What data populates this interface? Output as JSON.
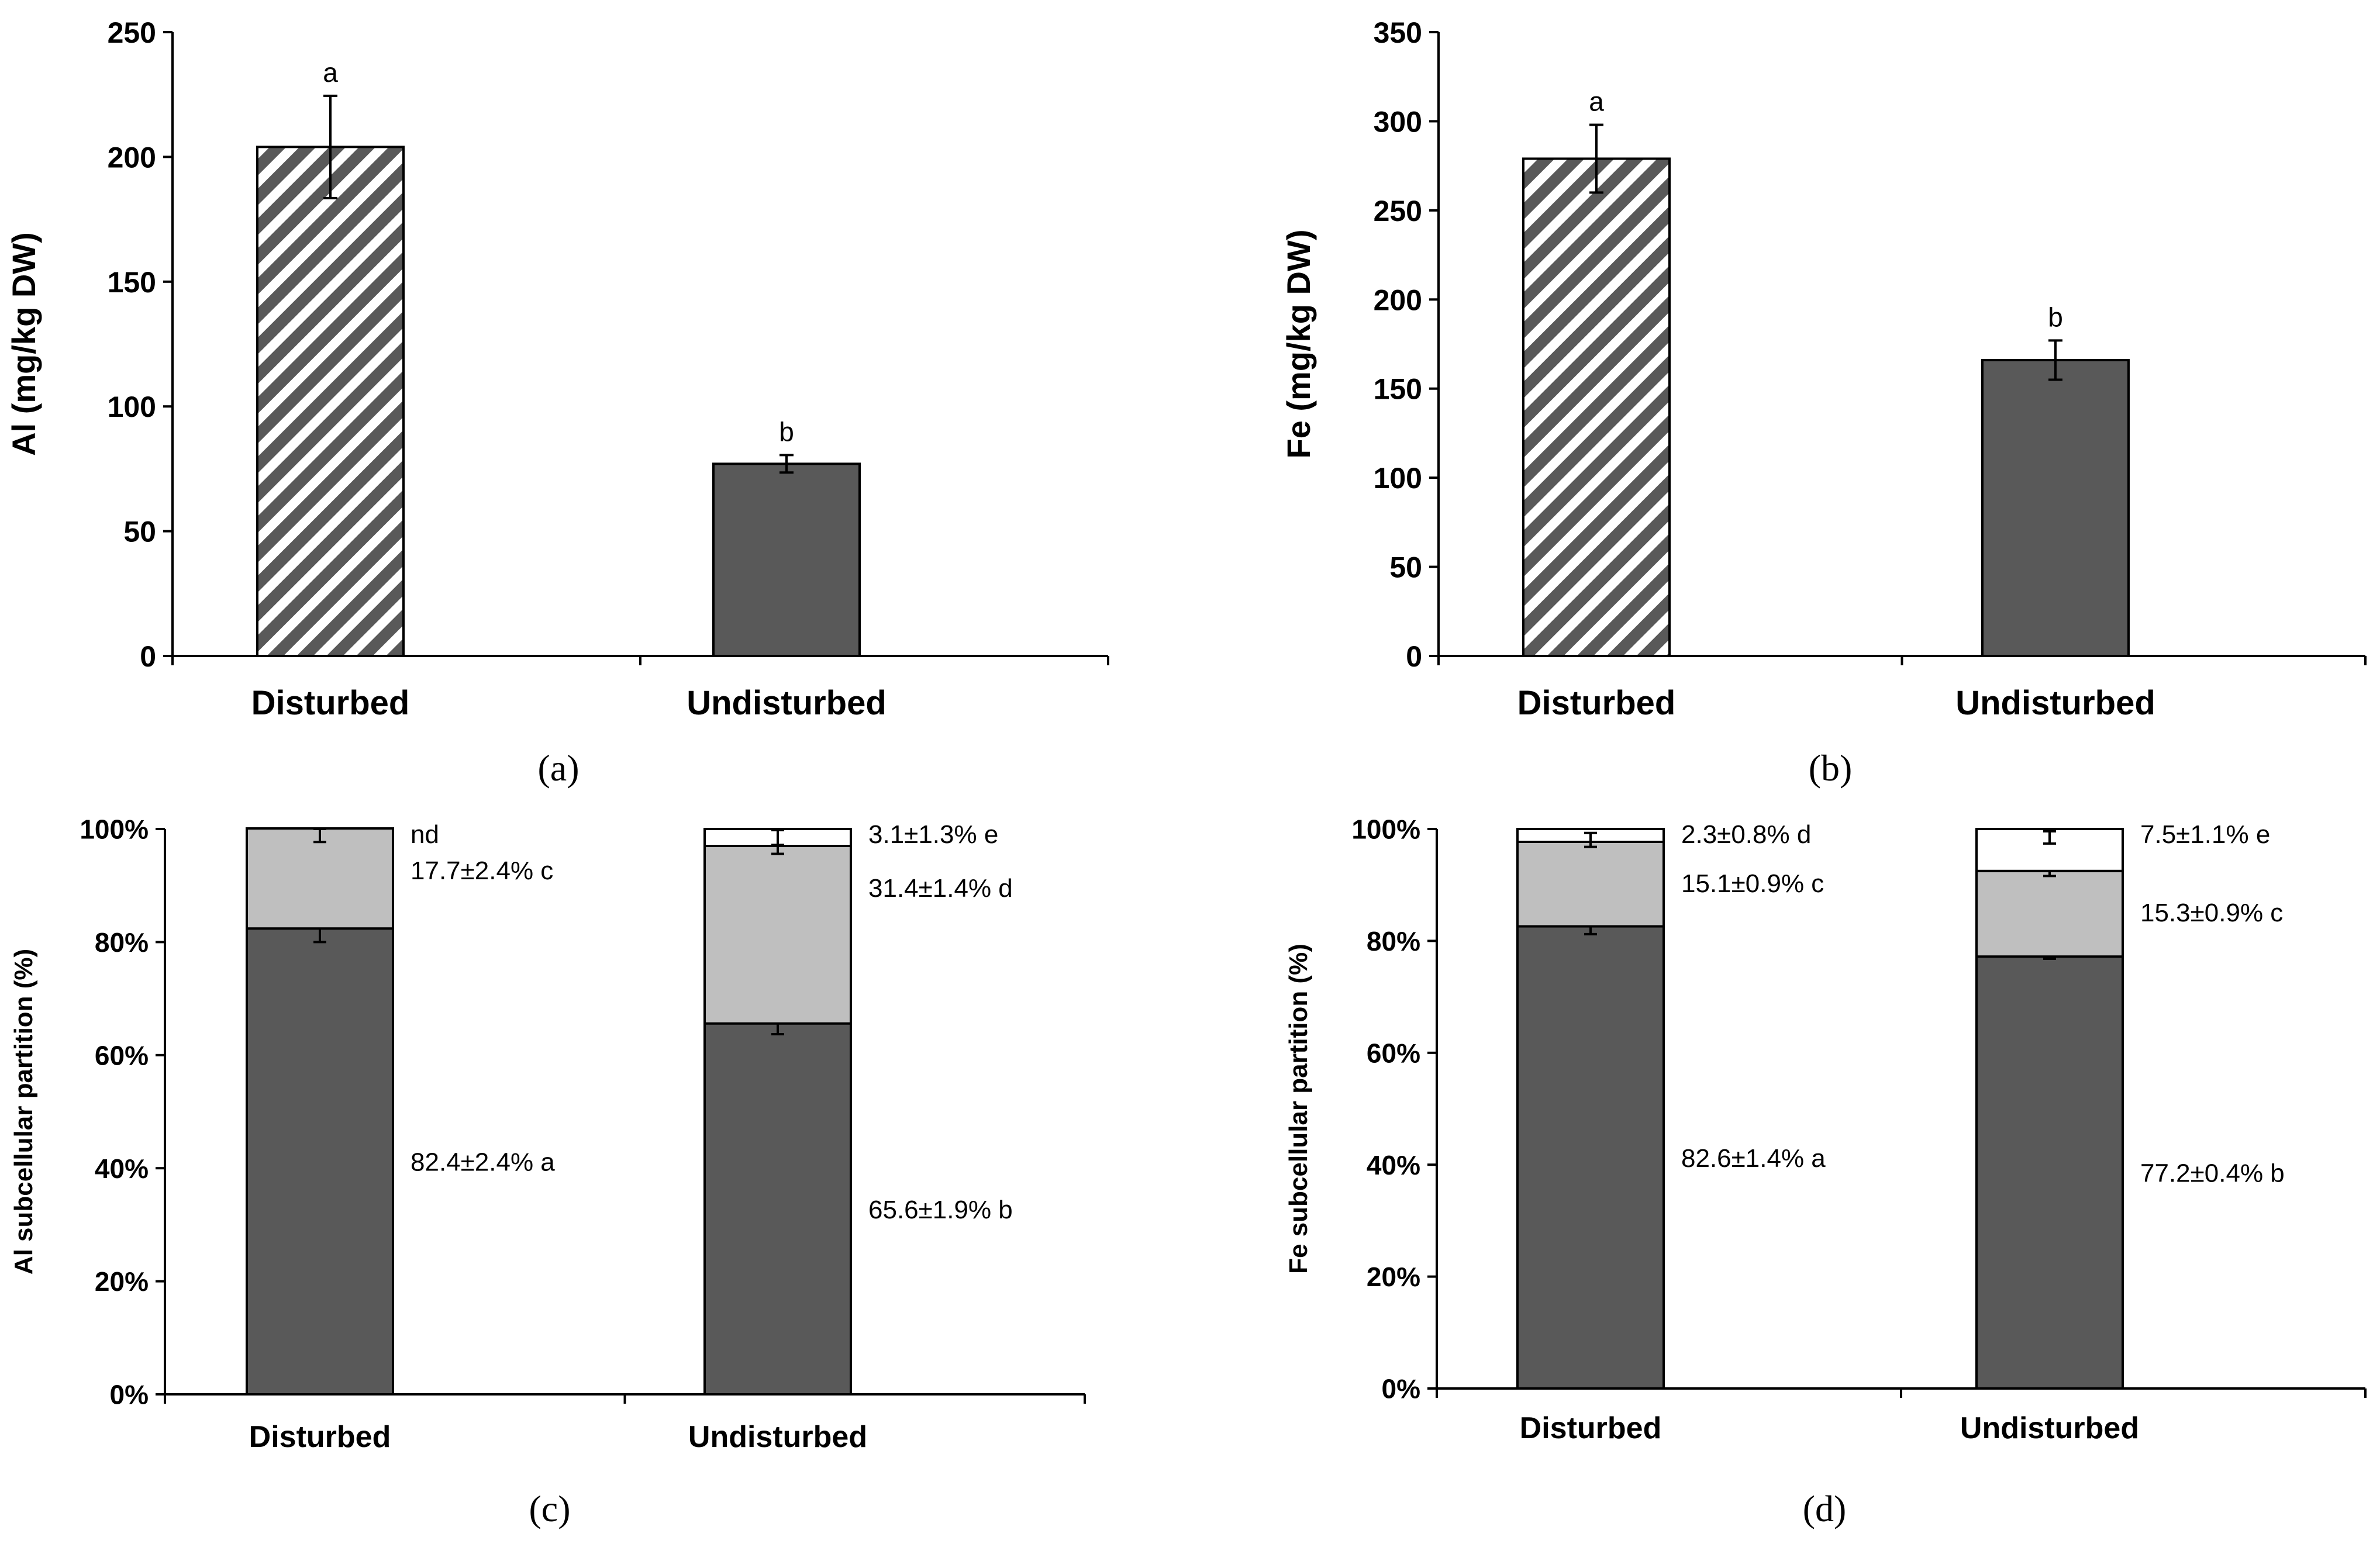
{
  "colors": {
    "dark_bar": "#595959",
    "light_gray": "#bfbfbf",
    "white": "#ffffff",
    "axis": "#000000",
    "hatch": "#595959"
  },
  "chart_data": [
    {
      "panel": "(a)",
      "type": "bar",
      "ylabel": "Al (mg/kg DW)",
      "xlabel": "",
      "ylim": [
        0,
        250
      ],
      "yticks": [
        "0",
        "50",
        "100",
        "150",
        "200",
        "250"
      ],
      "categories": [
        "Disturbed",
        "Undisturbed"
      ],
      "values": [
        204,
        77
      ],
      "errors": [
        20.5,
        3.5
      ],
      "letters": [
        "a",
        "b"
      ],
      "patterns": [
        "hatched",
        "solid"
      ],
      "grid": false
    },
    {
      "panel": "(b)",
      "type": "bar",
      "ylabel": "Fe (mg/kg DW)",
      "xlabel": "",
      "ylim": [
        0,
        350
      ],
      "yticks": [
        "0",
        "50",
        "100",
        "150",
        "200",
        "250",
        "300",
        "350"
      ],
      "categories": [
        "Disturbed",
        "Undisturbed"
      ],
      "values": [
        279,
        166
      ],
      "errors": [
        19,
        11
      ],
      "letters": [
        "a",
        "b"
      ],
      "patterns": [
        "hatched",
        "solid"
      ],
      "grid": false
    },
    {
      "panel": "(c)",
      "type": "bar",
      "stacked": true,
      "ylabel": "Al subcellular partition (%)",
      "xlabel": "",
      "ylim": [
        0,
        100
      ],
      "yticks": [
        "0%",
        "20%",
        "40%",
        "60%",
        "80%",
        "100%"
      ],
      "categories": [
        "Disturbed",
        "Undisturbed"
      ],
      "series": [
        {
          "values": [
            82.4,
            65.6
          ],
          "errors": [
            2.4,
            1.9
          ],
          "labels": [
            "82.4±2.4% a",
            "65.6±1.9% b"
          ]
        },
        {
          "values": [
            17.7,
            31.4
          ],
          "errors": [
            2.4,
            1.4
          ],
          "labels": [
            "17.7±2.4% c",
            "31.4±1.4% d"
          ]
        },
        {
          "values": [
            0,
            3.1
          ],
          "errors": [
            0,
            1.3
          ],
          "labels": [
            "nd",
            "3.1±1.3% e"
          ]
        }
      ],
      "grid": false
    },
    {
      "panel": "(d)",
      "type": "bar",
      "stacked": true,
      "ylabel": "Fe subcellular partition (%)",
      "xlabel": "",
      "ylim": [
        0,
        100
      ],
      "yticks": [
        "0%",
        "20%",
        "40%",
        "60%",
        "80%",
        "100%"
      ],
      "categories": [
        "Disturbed",
        "Undisturbed"
      ],
      "series": [
        {
          "values": [
            82.6,
            77.2
          ],
          "errors": [
            1.4,
            0.4
          ],
          "labels": [
            "82.6±1.4% a",
            "77.2±0.4% b"
          ]
        },
        {
          "values": [
            15.1,
            15.3
          ],
          "errors": [
            0.9,
            0.9
          ],
          "labels": [
            "15.1±0.9% c",
            "15.3±0.9% c"
          ]
        },
        {
          "values": [
            2.3,
            7.5
          ],
          "errors": [
            0.8,
            1.1
          ],
          "labels": [
            "2.3±0.8% d",
            "7.5±1.1% e"
          ]
        }
      ],
      "grid": false
    }
  ]
}
